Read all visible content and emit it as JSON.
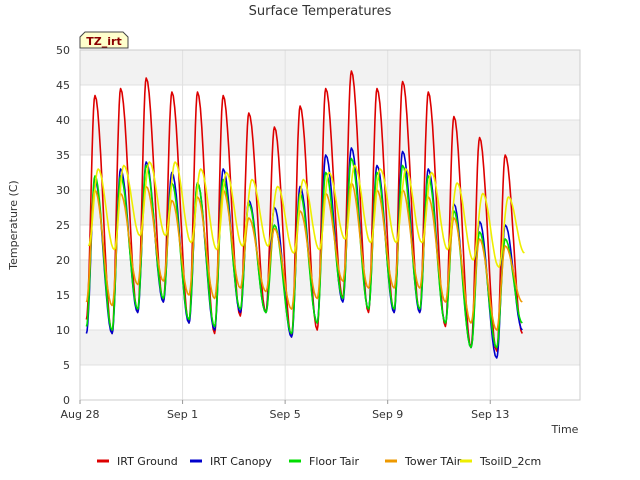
{
  "chart_data": {
    "type": "line",
    "title": "Surface Temperatures",
    "xlabel": "Time",
    "ylabel": "Temperature (C)",
    "site_tag": "TZ_irt",
    "x_range": [
      "2023-08-28",
      "2023-09-15"
    ],
    "ylim": [
      0,
      50
    ],
    "y_ticks": [
      0,
      5,
      10,
      15,
      20,
      25,
      30,
      35,
      40,
      45,
      50
    ],
    "x_ticks": [
      {
        "date": "2023-08-28",
        "label": "Aug 28"
      },
      {
        "date": "2023-09-01",
        "label": "Sep 1"
      },
      {
        "date": "2023-09-05",
        "label": "Sep 5"
      },
      {
        "date": "2023-09-09",
        "label": "Sep 9"
      },
      {
        "date": "2023-09-13",
        "label": "Sep 13"
      }
    ],
    "grid": true,
    "grid_bands": "alternating grey",
    "legend_position": "bottom",
    "series": [
      {
        "name": "IRT Ground",
        "color": "#dd0000",
        "points": [
          [
            "2023-08-28 06:00",
            11.5
          ],
          [
            "2023-08-28 14:00",
            43.5
          ],
          [
            "2023-08-29 06:00",
            9.5
          ],
          [
            "2023-08-29 14:00",
            44.5
          ],
          [
            "2023-08-30 06:00",
            12.5
          ],
          [
            "2023-08-30 14:00",
            46.0
          ],
          [
            "2023-08-31 06:00",
            14.0
          ],
          [
            "2023-08-31 14:00",
            44.0
          ],
          [
            "2023-09-01 06:00",
            11.0
          ],
          [
            "2023-09-01 14:00",
            44.0
          ],
          [
            "2023-09-02 06:00",
            9.5
          ],
          [
            "2023-09-02 14:00",
            43.5
          ],
          [
            "2023-09-03 06:00",
            12.0
          ],
          [
            "2023-09-03 14:00",
            41.0
          ],
          [
            "2023-09-04 06:00",
            12.5
          ],
          [
            "2023-09-04 14:00",
            39.0
          ],
          [
            "2023-09-05 06:00",
            9.0
          ],
          [
            "2023-09-05 14:00",
            42.0
          ],
          [
            "2023-09-06 06:00",
            10.0
          ],
          [
            "2023-09-06 14:00",
            44.5
          ],
          [
            "2023-09-07 06:00",
            14.5
          ],
          [
            "2023-09-07 14:00",
            47.0
          ],
          [
            "2023-09-08 06:00",
            12.5
          ],
          [
            "2023-09-08 14:00",
            44.5
          ],
          [
            "2023-09-09 06:00",
            12.5
          ],
          [
            "2023-09-09 14:00",
            45.5
          ],
          [
            "2023-09-10 06:00",
            12.5
          ],
          [
            "2023-09-10 14:00",
            44.0
          ],
          [
            "2023-09-11 06:00",
            10.5
          ],
          [
            "2023-09-11 14:00",
            40.5
          ],
          [
            "2023-09-12 06:00",
            7.5
          ],
          [
            "2023-09-12 14:00",
            37.5
          ],
          [
            "2023-09-13 06:00",
            7.0
          ],
          [
            "2023-09-13 14:00",
            35.0
          ],
          [
            "2023-09-14 06:00",
            9.5
          ]
        ]
      },
      {
        "name": "IRT Canopy",
        "color": "#0000cc",
        "points": [
          [
            "2023-08-28 06:00",
            9.5
          ],
          [
            "2023-08-28 14:00",
            31.5
          ],
          [
            "2023-08-29 06:00",
            9.5
          ],
          [
            "2023-08-29 14:00",
            33.0
          ],
          [
            "2023-08-30 06:00",
            12.5
          ],
          [
            "2023-08-30 14:00",
            34.0
          ],
          [
            "2023-08-31 06:00",
            14.0
          ],
          [
            "2023-08-31 14:00",
            32.5
          ],
          [
            "2023-09-01 06:00",
            11.0
          ],
          [
            "2023-09-01 14:00",
            31.0
          ],
          [
            "2023-09-02 06:00",
            10.0
          ],
          [
            "2023-09-02 14:00",
            33.0
          ],
          [
            "2023-09-03 06:00",
            12.5
          ],
          [
            "2023-09-03 14:00",
            28.5
          ],
          [
            "2023-09-04 06:00",
            12.5
          ],
          [
            "2023-09-04 14:00",
            27.5
          ],
          [
            "2023-09-05 06:00",
            9.0
          ],
          [
            "2023-09-05 14:00",
            30.5
          ],
          [
            "2023-09-06 06:00",
            11.0
          ],
          [
            "2023-09-06 14:00",
            35.0
          ],
          [
            "2023-09-07 06:00",
            14.0
          ],
          [
            "2023-09-07 14:00",
            36.0
          ],
          [
            "2023-09-08 06:00",
            13.0
          ],
          [
            "2023-09-08 14:00",
            33.5
          ],
          [
            "2023-09-09 06:00",
            12.5
          ],
          [
            "2023-09-09 14:00",
            35.5
          ],
          [
            "2023-09-10 06:00",
            12.5
          ],
          [
            "2023-09-10 14:00",
            33.0
          ],
          [
            "2023-09-11 06:00",
            11.0
          ],
          [
            "2023-09-11 14:00",
            28.0
          ],
          [
            "2023-09-12 06:00",
            7.5
          ],
          [
            "2023-09-12 14:00",
            25.5
          ],
          [
            "2023-09-13 06:00",
            6.0
          ],
          [
            "2023-09-13 14:00",
            25.0
          ],
          [
            "2023-09-14 06:00",
            10.0
          ]
        ]
      },
      {
        "name": "Floor Tair",
        "color": "#00dd00",
        "points": [
          [
            "2023-08-28 06:00",
            10.5
          ],
          [
            "2023-08-28 14:00",
            32.0
          ],
          [
            "2023-08-29 06:00",
            10.0
          ],
          [
            "2023-08-29 14:00",
            32.0
          ],
          [
            "2023-08-30 06:00",
            13.0
          ],
          [
            "2023-08-30 14:00",
            33.5
          ],
          [
            "2023-08-31 06:00",
            14.5
          ],
          [
            "2023-08-31 14:00",
            31.0
          ],
          [
            "2023-09-01 06:00",
            11.5
          ],
          [
            "2023-09-01 14:00",
            31.0
          ],
          [
            "2023-09-02 06:00",
            10.5
          ],
          [
            "2023-09-02 14:00",
            31.5
          ],
          [
            "2023-09-03 06:00",
            13.0
          ],
          [
            "2023-09-03 14:00",
            28.0
          ],
          [
            "2023-09-04 06:00",
            12.5
          ],
          [
            "2023-09-04 14:00",
            25.0
          ],
          [
            "2023-09-05 06:00",
            9.5
          ],
          [
            "2023-09-05 14:00",
            29.5
          ],
          [
            "2023-09-06 06:00",
            11.0
          ],
          [
            "2023-09-06 14:00",
            32.5
          ],
          [
            "2023-09-07 06:00",
            14.5
          ],
          [
            "2023-09-07 14:00",
            34.5
          ],
          [
            "2023-09-08 06:00",
            13.0
          ],
          [
            "2023-09-08 14:00",
            32.5
          ],
          [
            "2023-09-09 06:00",
            13.0
          ],
          [
            "2023-09-09 14:00",
            33.5
          ],
          [
            "2023-09-10 06:00",
            13.0
          ],
          [
            "2023-09-10 14:00",
            32.0
          ],
          [
            "2023-09-11 06:00",
            11.0
          ],
          [
            "2023-09-11 14:00",
            27.0
          ],
          [
            "2023-09-12 06:00",
            7.5
          ],
          [
            "2023-09-12 14:00",
            24.0
          ],
          [
            "2023-09-13 06:00",
            7.5
          ],
          [
            "2023-09-13 14:00",
            23.0
          ],
          [
            "2023-09-14 06:00",
            11.0
          ]
        ]
      },
      {
        "name": "Tower TAir",
        "color": "#ee9900",
        "points": [
          [
            "2023-08-28 06:00",
            14.0
          ],
          [
            "2023-08-28 14:00",
            30.0
          ],
          [
            "2023-08-29 06:00",
            13.5
          ],
          [
            "2023-08-29 14:00",
            29.5
          ],
          [
            "2023-08-30 06:00",
            16.5
          ],
          [
            "2023-08-30 14:00",
            30.5
          ],
          [
            "2023-08-31 06:00",
            17.0
          ],
          [
            "2023-08-31 14:00",
            28.5
          ],
          [
            "2023-09-01 06:00",
            15.0
          ],
          [
            "2023-09-01 14:00",
            29.0
          ],
          [
            "2023-09-02 06:00",
            14.5
          ],
          [
            "2023-09-02 14:00",
            30.0
          ],
          [
            "2023-09-03 06:00",
            16.0
          ],
          [
            "2023-09-03 14:00",
            26.0
          ],
          [
            "2023-09-04 06:00",
            15.5
          ],
          [
            "2023-09-04 14:00",
            24.5
          ],
          [
            "2023-09-05 06:00",
            13.0
          ],
          [
            "2023-09-05 14:00",
            27.0
          ],
          [
            "2023-09-06 06:00",
            14.5
          ],
          [
            "2023-09-06 14:00",
            29.5
          ],
          [
            "2023-09-07 06:00",
            17.0
          ],
          [
            "2023-09-07 14:00",
            31.0
          ],
          [
            "2023-09-08 06:00",
            16.0
          ],
          [
            "2023-09-08 14:00",
            30.0
          ],
          [
            "2023-09-09 06:00",
            16.0
          ],
          [
            "2023-09-09 14:00",
            30.0
          ],
          [
            "2023-09-10 06:00",
            16.0
          ],
          [
            "2023-09-10 14:00",
            29.0
          ],
          [
            "2023-09-11 06:00",
            14.0
          ],
          [
            "2023-09-11 14:00",
            26.0
          ],
          [
            "2023-09-12 06:00",
            11.0
          ],
          [
            "2023-09-12 14:00",
            23.0
          ],
          [
            "2023-09-13 06:00",
            10.0
          ],
          [
            "2023-09-13 14:00",
            22.0
          ],
          [
            "2023-09-14 06:00",
            14.0
          ]
        ]
      },
      {
        "name": "TsoilD_2cm",
        "color": "#eeee00",
        "points": [
          [
            "2023-08-28 08:00",
            22.0
          ],
          [
            "2023-08-28 17:00",
            33.0
          ],
          [
            "2023-08-29 08:00",
            21.5
          ],
          [
            "2023-08-29 17:00",
            33.5
          ],
          [
            "2023-08-30 08:00",
            23.5
          ],
          [
            "2023-08-30 17:00",
            34.0
          ],
          [
            "2023-08-31 08:00",
            23.5
          ],
          [
            "2023-08-31 17:00",
            34.0
          ],
          [
            "2023-09-01 08:00",
            22.5
          ],
          [
            "2023-09-01 17:00",
            33.0
          ],
          [
            "2023-09-02 08:00",
            21.5
          ],
          [
            "2023-09-02 17:00",
            32.5
          ],
          [
            "2023-09-03 08:00",
            22.0
          ],
          [
            "2023-09-03 17:00",
            31.5
          ],
          [
            "2023-09-04 08:00",
            22.0
          ],
          [
            "2023-09-04 17:00",
            30.5
          ],
          [
            "2023-09-05 08:00",
            21.0
          ],
          [
            "2023-09-05 17:00",
            31.5
          ],
          [
            "2023-09-06 08:00",
            21.5
          ],
          [
            "2023-09-06 17:00",
            32.5
          ],
          [
            "2023-09-07 08:00",
            23.0
          ],
          [
            "2023-09-07 17:00",
            33.5
          ],
          [
            "2023-09-08 08:00",
            22.5
          ],
          [
            "2023-09-08 17:00",
            33.0
          ],
          [
            "2023-09-09 08:00",
            22.5
          ],
          [
            "2023-09-09 17:00",
            33.0
          ],
          [
            "2023-09-10 08:00",
            22.5
          ],
          [
            "2023-09-10 17:00",
            32.5
          ],
          [
            "2023-09-11 08:00",
            21.5
          ],
          [
            "2023-09-11 17:00",
            31.0
          ],
          [
            "2023-09-12 08:00",
            20.0
          ],
          [
            "2023-09-12 17:00",
            29.5
          ],
          [
            "2023-09-13 08:00",
            19.0
          ],
          [
            "2023-09-13 17:00",
            29.0
          ],
          [
            "2023-09-14 08:00",
            21.0
          ]
        ]
      }
    ]
  }
}
